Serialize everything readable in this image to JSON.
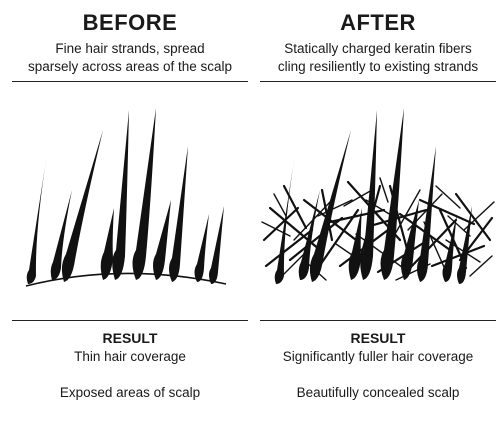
{
  "before": {
    "heading": "BEFORE",
    "description_line1": "Fine hair strands, spread",
    "description_line2": "sparsely across areas of the scalp",
    "result_title": "RESULT",
    "result_line1": "Thin hair coverage",
    "result_line2": "Exposed areas of scalp"
  },
  "after": {
    "heading": "AFTER",
    "description_line1": "Statically charged keratin fibers",
    "description_line2": "cling resiliently to existing strands",
    "result_title": "RESULT",
    "result_line1": "Significantly fuller hair coverage",
    "result_line2": "Beautifully concealed scalp"
  },
  "colors": {
    "ink": "#111111",
    "text": "#1a1a1a",
    "background": "#ffffff"
  }
}
